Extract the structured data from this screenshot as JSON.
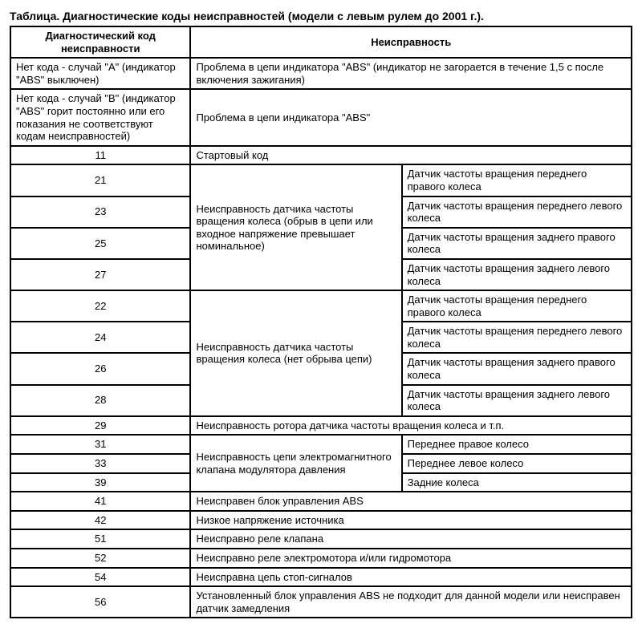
{
  "title": "Таблица. Диагностические коды неисправностей (модели с левым рулем до 2001 г.).",
  "headers": {
    "code": "Диагностический код неисправности",
    "fault": "Неисправность"
  },
  "row_a": {
    "code": "Нет кода - случай \"А\" (индикатор \"ABS\" выключен)",
    "fault": "Проблема в цепи индикатора \"ABS\" (индикатор не загорается в течение 1,5 с после включения зажигания)"
  },
  "row_b": {
    "code": "Нет кода - случай \"В\" (индикатор \"ABS\" горит постоянно или его показания не соответствуют кодам неисправностей)",
    "fault": "Проблема в цепи индикатора \"ABS\""
  },
  "row_11": {
    "code": "11",
    "fault": "Стартовый код"
  },
  "group1": {
    "desc": "Неисправность датчика частоты вращения колеса (обрыв в цепи или входное напряжение превышает номинальное)",
    "rows": [
      {
        "code": "21",
        "right": "Датчик частоты вращения переднего правого колеса"
      },
      {
        "code": "23",
        "right": "Датчик частоты вращения переднего левого колеса"
      },
      {
        "code": "25",
        "right": "Датчик частоты вращения заднего правого колеса"
      },
      {
        "code": "27",
        "right": "Датчик частоты вращения заднего левого колеса"
      }
    ]
  },
  "group2": {
    "desc": "Неисправность датчика частоты вращения колеса (нет обрыва цепи)",
    "rows": [
      {
        "code": "22",
        "right": "Датчик частоты вращения переднего правого колеса"
      },
      {
        "code": "24",
        "right": "Датчик частоты вращения переднего левого колеса"
      },
      {
        "code": "26",
        "right": "Датчик частоты вращения заднего правого колеса"
      },
      {
        "code": "28",
        "right": "Датчик частоты вращения заднего левого колеса"
      }
    ]
  },
  "row_29": {
    "code": "29",
    "fault": "Неисправность ротора датчика частоты вращения колеса и т.п."
  },
  "group3": {
    "desc": "Неисправность цепи электромагнитного клапана модулятора давления",
    "rows": [
      {
        "code": "31",
        "right": "Переднее правое колесо"
      },
      {
        "code": "33",
        "right": "Переднее левое колесо"
      },
      {
        "code": "39",
        "right": "Задние колеса"
      }
    ]
  },
  "row_41": {
    "code": "41",
    "fault": "Неисправен блок управления ABS"
  },
  "row_42": {
    "code": "42",
    "fault": "Низкое напряжение источника"
  },
  "row_51": {
    "code": "51",
    "fault": "Неисправно реле клапана"
  },
  "row_52": {
    "code": "52",
    "fault": "Неисправно реле электромотора и/или гидромотора"
  },
  "row_54": {
    "code": "54",
    "fault": "Неисправна цепь стоп-сигналов"
  },
  "row_56": {
    "code": "56",
    "fault": "Установленный блок управления ABS не подходит для данной модели или неисправен датчик замедления"
  }
}
